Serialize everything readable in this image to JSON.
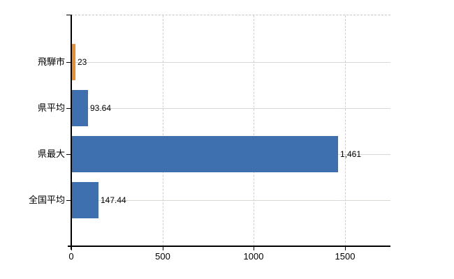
{
  "chart_data": {
    "type": "bar",
    "orientation": "horizontal",
    "title": "",
    "xlabel": "",
    "ylabel": "",
    "categories": [
      "飛騨市",
      "県平均",
      "県最大",
      "全国平均"
    ],
    "values": [
      23,
      93.64,
      1461,
      147.44
    ],
    "value_labels": [
      "23",
      "93.64",
      "1,461",
      "147.44"
    ],
    "bar_colors": [
      "#ed8e2d",
      "#3e6fae",
      "#3e6fae",
      "#3e6fae"
    ],
    "x_ticks": [
      0,
      500,
      1000,
      1500
    ],
    "x_tick_labels": [
      "0",
      "500",
      "1000",
      "1500"
    ],
    "xlim": [
      0,
      1750
    ],
    "grid": true,
    "legend": "none",
    "colors": {
      "highlight_bar": "#ed8e2d",
      "default_bar": "#3e6fae",
      "axis": "#000000",
      "hgrid": "#d6dad4",
      "vgrid": "#d2cdd5",
      "background": "#ffffff"
    }
  }
}
